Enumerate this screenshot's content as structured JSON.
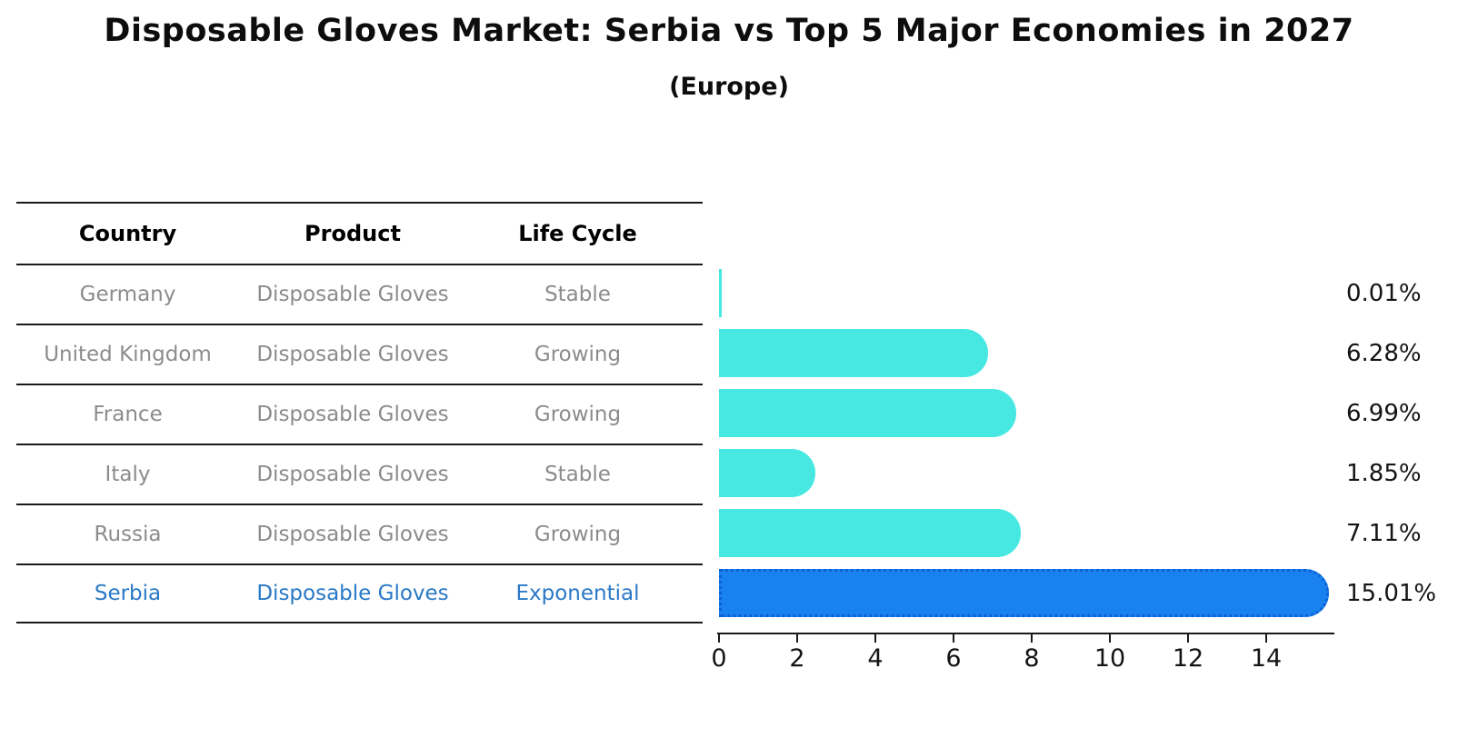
{
  "title": "Disposable Gloves Market: Serbia vs Top 5 Major Economies in 2027",
  "subtitle": "(Europe)",
  "colors": {
    "bar_default": "#48E8E2",
    "bar_highlight": "#1A82F0",
    "bar_highlight_border": "#0D5FD6",
    "text_muted": "#8C8C8C",
    "text_highlight": "#2A79C7"
  },
  "table": {
    "headers": [
      "Country",
      "Product",
      "Life Cycle"
    ],
    "rows": [
      {
        "country": "Germany",
        "product": "Disposable Gloves",
        "life_cycle": "Stable",
        "highlight": false
      },
      {
        "country": "United Kingdom",
        "product": "Disposable Gloves",
        "life_cycle": "Growing",
        "highlight": false
      },
      {
        "country": "France",
        "product": "Disposable Gloves",
        "life_cycle": "Growing",
        "highlight": false
      },
      {
        "country": "Italy",
        "product": "Disposable Gloves",
        "life_cycle": "Stable",
        "highlight": false
      },
      {
        "country": "Russia",
        "product": "Disposable Gloves",
        "life_cycle": "Growing",
        "highlight": false
      },
      {
        "country": "Serbia",
        "product": "Disposable Gloves",
        "life_cycle": "Exponential",
        "highlight": true
      }
    ]
  },
  "chart_data": {
    "type": "bar",
    "orientation": "horizontal",
    "title": "Disposable Gloves Market: Serbia vs Top 5 Major Economies in 2027",
    "subtitle": "(Europe)",
    "categories": [
      "Germany",
      "United Kingdom",
      "France",
      "Italy",
      "Russia",
      "Serbia"
    ],
    "values": [
      0.01,
      6.28,
      6.99,
      1.85,
      7.11,
      15.01
    ],
    "value_labels": [
      "0.01%",
      "6.28%",
      "6.99%",
      "1.85%",
      "7.11%",
      "15.01%"
    ],
    "highlight_category": "Serbia",
    "x_ticks": [
      0,
      2,
      4,
      6,
      8,
      10,
      12,
      14
    ],
    "xlim": [
      0,
      15.7
    ],
    "xlabel": "",
    "ylabel": "",
    "grid": false,
    "legend": false,
    "value_label_position": "right"
  }
}
